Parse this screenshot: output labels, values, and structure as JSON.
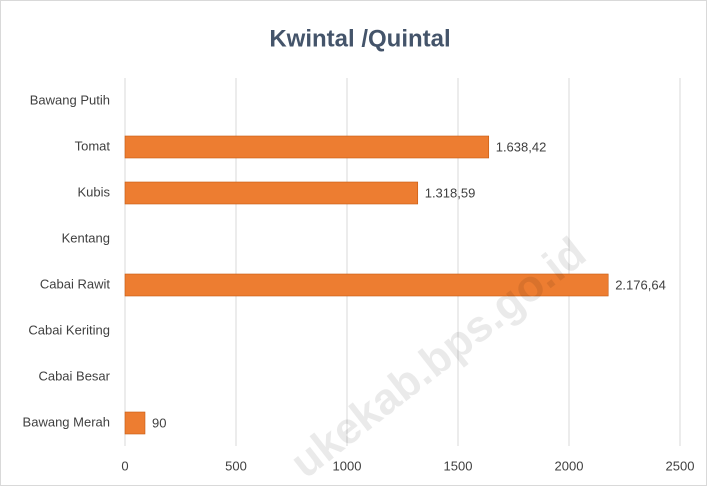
{
  "chart_data": {
    "type": "bar",
    "orientation": "horizontal",
    "title": "Kwintal /Quintal",
    "categories": [
      "Bawang Putih",
      "Tomat",
      "Kubis",
      "Kentang",
      "Cabai Rawit",
      "Cabai Keriting",
      "Cabai Besar",
      "Bawang Merah"
    ],
    "values": [
      null,
      1638.42,
      1318.59,
      null,
      2176.64,
      null,
      null,
      90
    ],
    "value_labels": [
      null,
      "1.638,42",
      "1.318,59",
      null,
      "2.176,64",
      null,
      null,
      "90"
    ],
    "color": "#ed7d31",
    "xlim": [
      0,
      2500
    ],
    "xticks": [
      0,
      500,
      1000,
      1500,
      2000,
      2500
    ],
    "grid": true,
    "watermark": "ukekab.bps.go.id"
  }
}
